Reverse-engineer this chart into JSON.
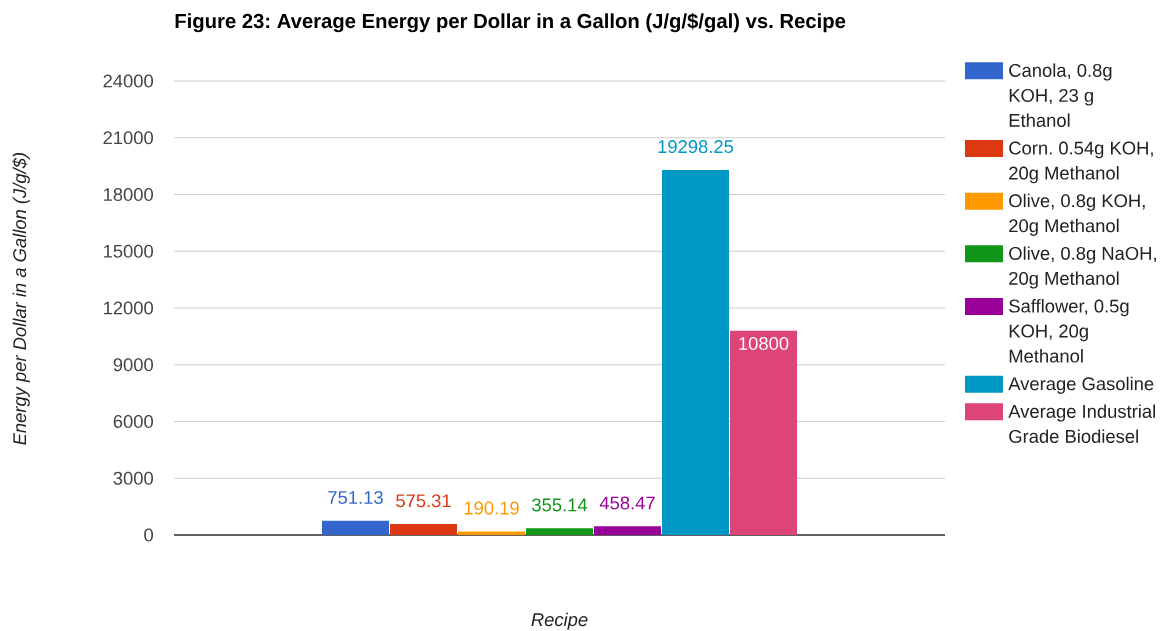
{
  "chart_data": {
    "type": "bar",
    "title": "Figure 23: Average Energy per Dollar in a Gallon (J/g/$/gal) vs. Recipe",
    "xlabel": "Recipe",
    "ylabel": "Energy per Dollar in a Gallon (J/g/$)",
    "categories": [
      null
    ],
    "series": [
      {
        "name": "Canola, 0.8g KOH, 23 g Ethanol",
        "color": "#3366cc",
        "values": [
          751.13
        ]
      },
      {
        "name": "Corn. 0.54g KOH, 20g Methanol",
        "color": "#dc3912",
        "values": [
          575.31
        ]
      },
      {
        "name": "Olive, 0.8g KOH, 20g Methanol",
        "color": "#ff9900",
        "values": [
          190.19
        ]
      },
      {
        "name": "Olive, 0.8g NaOH, 20g Methanol",
        "color": "#109618",
        "values": [
          355.14
        ]
      },
      {
        "name": "Safflower, 0.5g KOH, 20g Methanol",
        "color": "#990099",
        "values": [
          458.47
        ]
      },
      {
        "name": "Average Gasoline",
        "color": "#0099c6",
        "values": [
          19298.25
        ]
      },
      {
        "name": "Average Industrial Grade Biodiesel",
        "color": "#dd4477",
        "values": [
          10800
        ]
      }
    ],
    "ylim": [
      0,
      24000
    ],
    "yticks": [
      0,
      3000,
      6000,
      9000,
      12000,
      15000,
      18000,
      21000,
      24000
    ],
    "grid": "y",
    "legend": "right",
    "data_labels": true
  }
}
